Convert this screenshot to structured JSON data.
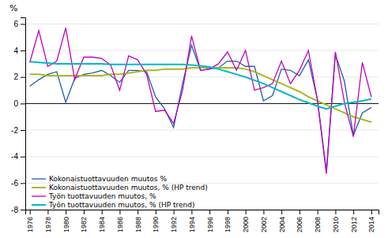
{
  "chart_data": {
    "type": "line",
    "y_label": "%",
    "x": [
      1976,
      1977,
      1978,
      1979,
      1980,
      1981,
      1982,
      1983,
      1984,
      1985,
      1986,
      1987,
      1988,
      1989,
      1990,
      1991,
      1992,
      1993,
      1994,
      1995,
      1996,
      1997,
      1998,
      1999,
      2000,
      2001,
      2002,
      2003,
      2004,
      2005,
      2006,
      2007,
      2008,
      2009,
      2010,
      2011,
      2012,
      2013,
      2014
    ],
    "series": [
      {
        "name": "Kokonaistuottavuuden muutos %",
        "color": "#1f5fa6",
        "values": [
          1.3,
          1.8,
          2.2,
          2.4,
          0.1,
          1.9,
          2.2,
          2.3,
          2.5,
          2.1,
          1.6,
          2.5,
          2.5,
          2.4,
          0.5,
          -0.4,
          -1.8,
          1.5,
          4.4,
          2.5,
          2.6,
          2.7,
          3.2,
          3.2,
          2.8,
          2.8,
          0.2,
          0.6,
          2.6,
          2.5,
          2.1,
          3.3,
          0.3,
          -5.1,
          3.7,
          1.7,
          -2.4,
          -0.7,
          -0.3
        ]
      },
      {
        "name": "Kokonaistuottavuuden muutos, %  (HP trend)",
        "color": "#a8b820",
        "values": [
          2.2,
          2.2,
          2.1,
          2.1,
          2.1,
          2.1,
          2.1,
          2.1,
          2.1,
          2.2,
          2.2,
          2.3,
          2.4,
          2.5,
          2.5,
          2.6,
          2.6,
          2.6,
          2.7,
          2.7,
          2.7,
          2.7,
          2.7,
          2.7,
          2.6,
          2.4,
          2.1,
          1.8,
          1.5,
          1.2,
          0.9,
          0.5,
          0.2,
          -0.1,
          -0.4,
          -0.7,
          -1.0,
          -1.2,
          -1.4
        ]
      },
      {
        "name": "Työn tuottavuuden muutos, %",
        "color": "#c000c0",
        "values": [
          3.1,
          5.5,
          2.8,
          3.2,
          5.7,
          1.8,
          3.5,
          3.5,
          3.4,
          2.9,
          1.0,
          3.6,
          3.3,
          2.2,
          -0.6,
          -0.5,
          -1.5,
          1.0,
          5.1,
          2.5,
          2.6,
          3.0,
          3.9,
          2.5,
          4.0,
          1.0,
          1.2,
          1.5,
          3.2,
          1.5,
          2.5,
          4.0,
          0.3,
          -5.3,
          3.9,
          0.1,
          -2.5,
          3.1,
          0.5
        ]
      },
      {
        "name": "Työn tuottavuuden muutos, % (HP trend)",
        "color": "#00b8c8",
        "values": [
          3.15,
          3.1,
          3.05,
          3.0,
          3.0,
          3.0,
          3.0,
          3.0,
          3.0,
          2.95,
          2.95,
          2.95,
          2.95,
          2.95,
          2.95,
          2.95,
          2.95,
          2.95,
          2.9,
          2.85,
          2.75,
          2.6,
          2.4,
          2.2,
          2.0,
          1.75,
          1.5,
          1.2,
          0.9,
          0.6,
          0.3,
          0.05,
          -0.2,
          -0.4,
          -0.2,
          0.0,
          0.1,
          0.2,
          0.35
        ]
      }
    ],
    "xlim": [
      1975.5,
      2014.8
    ],
    "xticks": [
      1976,
      1978,
      1980,
      1982,
      1984,
      1986,
      1988,
      1990,
      1992,
      1994,
      1996,
      1998,
      2000,
      2002,
      2004,
      2006,
      2008,
      2010,
      2012,
      2014
    ],
    "ylim": [
      -8,
      6.5
    ],
    "yticks": [
      -8,
      -6,
      -4,
      -2,
      0,
      2,
      4,
      6
    ],
    "grid": true,
    "legend": "lower left"
  }
}
